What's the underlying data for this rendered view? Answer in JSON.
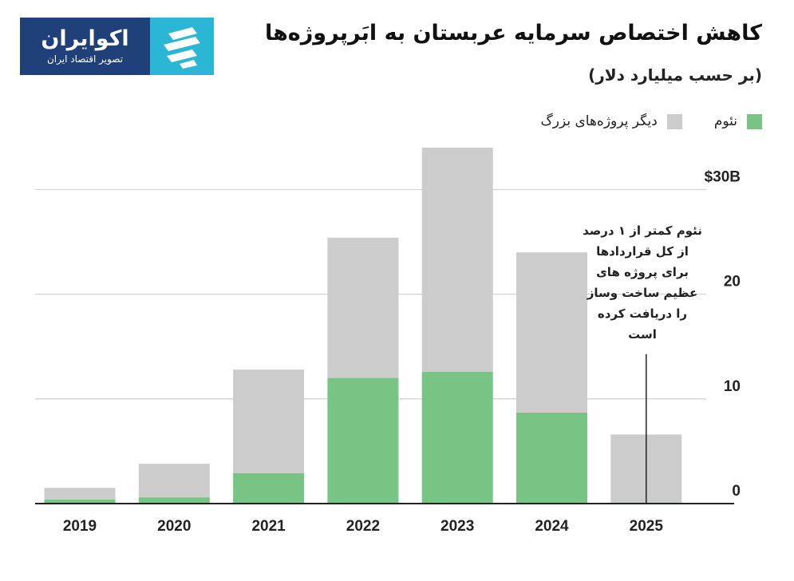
{
  "logo": {
    "name": "اکوایران",
    "tagline": "تصویر اقتصاد ایران",
    "colors": {
      "background": "#1f4079",
      "mark": "#2bb6d6"
    }
  },
  "header": {
    "title": "کاهش اختصاص سرمایه عربستان به ابَرپروژه‌ها",
    "subtitle": "(بر حسب میلیارد دلار)"
  },
  "legend": {
    "items": [
      {
        "label": "نئوم",
        "color": "#77c485"
      },
      {
        "label": "دیگر پروژه‌های بزرگ",
        "color": "#cccccc"
      }
    ]
  },
  "annotation": {
    "text": "نئوم کمتر از ۱ درصد از کل قراردادها برای پروژه های عظیم ساخت وساز را دریافت کرده است"
  },
  "chart_data": {
    "type": "bar",
    "stacked": true,
    "categories": [
      "2019",
      "2020",
      "2021",
      "2022",
      "2023",
      "2024",
      "2025"
    ],
    "series": [
      {
        "name": "نئوم",
        "color": "#77c485",
        "values": [
          0.4,
          0.6,
          2.9,
          12.0,
          12.6,
          8.7,
          0.1
        ]
      },
      {
        "name": "دیگر پروژه‌های بزرگ",
        "color": "#cccccc",
        "values": [
          1.1,
          3.2,
          9.9,
          13.4,
          21.4,
          15.3,
          6.5
        ]
      }
    ],
    "yticks": [
      {
        "value": 0,
        "label": "0"
      },
      {
        "value": 10,
        "label": "10"
      },
      {
        "value": 20,
        "label": "20"
      },
      {
        "value": 30,
        "label": "$30B"
      }
    ],
    "ylim": [
      0,
      34
    ],
    "grid": true,
    "axis_side": "right",
    "legend_position": "top-right"
  }
}
